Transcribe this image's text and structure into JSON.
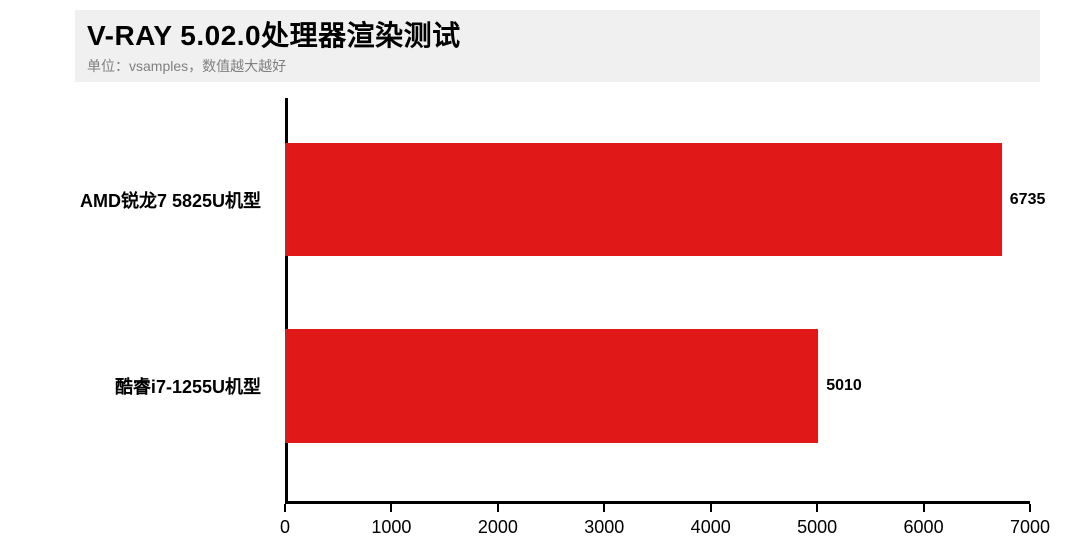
{
  "header": {
    "title": "V-RAY 5.02.0处理器渲染测试",
    "subtitle": "单位：vsamples，数值越大越好"
  },
  "chart": {
    "type": "bar-horizontal",
    "background_color": "#ffffff",
    "header_bg": "#f0f0f0",
    "bar_color": "#e01818",
    "axis_color": "#000000",
    "label_fontsize": 18,
    "value_fontsize": 16,
    "title_fontsize": 28,
    "xlim": [
      0,
      7000
    ],
    "xtick_step": 1000,
    "xticks": [
      0,
      1000,
      2000,
      3000,
      4000,
      5000,
      6000,
      7000
    ],
    "bar_height_pct": 28,
    "bar_gap_pct": 18,
    "categories": [
      {
        "label": "AMD锐龙7 5825U机型",
        "value": 6735
      },
      {
        "label": "酷睿i7-1255U机型",
        "value": 5010
      }
    ]
  }
}
